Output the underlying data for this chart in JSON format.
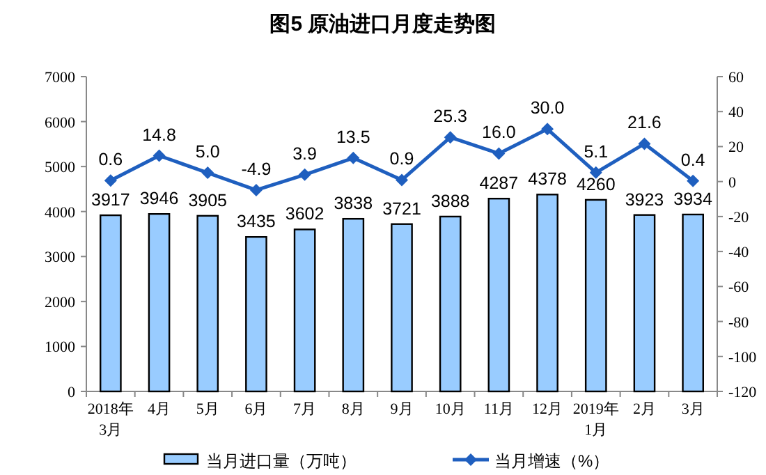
{
  "chart_data": {
    "type": "bar",
    "title": "图5  原油进口月度走势图",
    "categories": [
      "2018年\n3月",
      "4月",
      "5月",
      "6月",
      "7月",
      "8月",
      "9月",
      "10月",
      "11月",
      "12月",
      "2019年\n1月",
      "2月",
      "3月"
    ],
    "series": [
      {
        "name": "当月进口量（万吨）",
        "color": "#99ccff",
        "values": [
          3917,
          3946,
          3905,
          3435,
          3602,
          3838,
          3721,
          3888,
          4287,
          4378,
          4260,
          3923,
          3934
        ]
      },
      {
        "name": "当月增速（%）",
        "type": "line",
        "axis": "y2",
        "color": "#1f5fbf",
        "values": [
          0.6,
          14.8,
          5.0,
          -4.9,
          3.9,
          13.5,
          0.9,
          25.3,
          16.0,
          30.0,
          5.1,
          21.6,
          0.4
        ],
        "value_labels": [
          "0.6",
          "14.8",
          "5.0",
          "-4.9",
          "3.9",
          "13.5",
          "0.9",
          "25.3",
          "16.0",
          "30.0",
          "5.1",
          "21.6",
          "0.4"
        ]
      }
    ],
    "ylim": [
      0,
      7000
    ],
    "yticks": [
      0,
      1000,
      2000,
      3000,
      4000,
      5000,
      6000,
      7000
    ],
    "y2lim": [
      -120,
      60
    ],
    "y2ticks": [
      -120,
      -100,
      -80,
      -60,
      -40,
      -20,
      0,
      20,
      40,
      60
    ],
    "data_labels": true,
    "marker": "diamond",
    "legend": "bottom",
    "grid": false
  }
}
